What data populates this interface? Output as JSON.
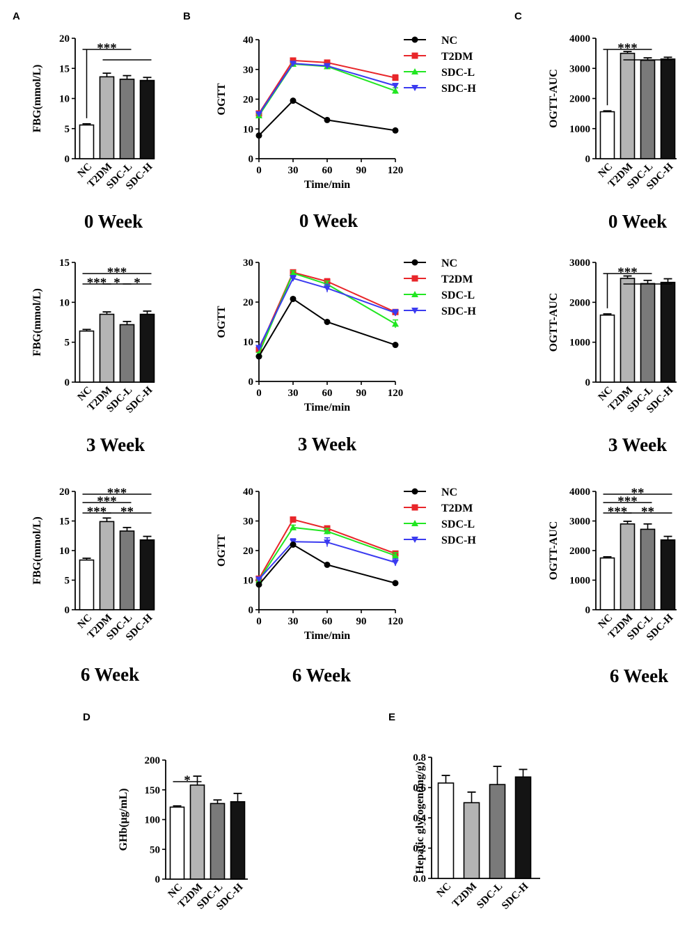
{
  "colors": {
    "NC": "#000000",
    "T2DM": "#e8262a",
    "SDC-L": "#22e622",
    "SDC-H": "#3b3bf0",
    "bar_fills": [
      "#ffffff",
      "#b4b4b4",
      "#7a7a7a",
      "#141414"
    ]
  },
  "panel_letters": {
    "A": "A",
    "B": "B",
    "C": "C",
    "D": "D",
    "E": "E"
  },
  "chart_data": [
    {
      "id": "A0",
      "type": "bar",
      "panel": "A",
      "title": "0 Week",
      "ylabel": "FBG(mmol/L)",
      "categories": [
        "NC",
        "T2DM",
        "SDC-L",
        "SDC-H"
      ],
      "values": [
        5.6,
        13.6,
        13.2,
        13.0
      ],
      "errors": [
        0.2,
        0.6,
        0.6,
        0.5
      ],
      "ylim": [
        0,
        20
      ],
      "yticks": [
        "0",
        "5",
        "10",
        "15",
        "20"
      ],
      "annotations": [
        {
          "text": "***",
          "from": 0,
          "to": 2,
          "level": 2,
          "drop": [
            0
          ]
        },
        {
          "text": "",
          "from": 1,
          "to": 3,
          "level": 1,
          "drop": []
        }
      ]
    },
    {
      "id": "A3",
      "type": "bar",
      "panel": "A",
      "title": "3 Week",
      "ylabel": "FBG(mmol/L)",
      "categories": [
        "NC",
        "T2DM",
        "SDC-L",
        "SDC-H"
      ],
      "values": [
        6.4,
        8.5,
        7.2,
        8.5
      ],
      "errors": [
        0.2,
        0.3,
        0.4,
        0.4
      ],
      "ylim": [
        0,
        15
      ],
      "yticks": [
        "0",
        "5",
        "10",
        "15"
      ],
      "annotations": [
        {
          "text": "***",
          "from": 0,
          "to": 3,
          "level": 2,
          "drop": []
        },
        {
          "text": "***",
          "from": 0,
          "to": 1,
          "level": 1,
          "drop": []
        },
        {
          "text": "*",
          "from": 1,
          "to": 2,
          "level": 1,
          "drop": []
        },
        {
          "text": "*",
          "from": 2,
          "to": 3,
          "level": 1,
          "drop": []
        }
      ]
    },
    {
      "id": "A6",
      "type": "bar",
      "panel": "A",
      "title": "6 Week",
      "ylabel": "FBG(mmol/L)",
      "categories": [
        "NC",
        "T2DM",
        "SDC-L",
        "SDC-H"
      ],
      "values": [
        8.4,
        14.9,
        13.3,
        11.8
      ],
      "errors": [
        0.3,
        0.6,
        0.6,
        0.6
      ],
      "ylim": [
        0,
        20
      ],
      "yticks": [
        "0",
        "5",
        "10",
        "15",
        "20"
      ],
      "annotations": [
        {
          "text": "***",
          "from": 0,
          "to": 3,
          "level": 3,
          "drop": []
        },
        {
          "text": "***",
          "from": 0,
          "to": 2,
          "level": 2,
          "drop": []
        },
        {
          "text": "***",
          "from": 0,
          "to": 1,
          "level": 1,
          "drop": []
        },
        {
          "text": "**",
          "from": 1,
          "to": 3,
          "level": 1,
          "drop": []
        }
      ]
    },
    {
      "id": "B0",
      "type": "line",
      "panel": "B",
      "title": "0 Week",
      "ylabel": "OGTT",
      "xlabel": "Time/min",
      "x": [
        0,
        30,
        60,
        120
      ],
      "xticks": [
        "0",
        "30",
        "60",
        "90",
        "120"
      ],
      "ylim": [
        0,
        40
      ],
      "yticks": [
        "0",
        "10",
        "20",
        "30",
        "40"
      ],
      "series": [
        {
          "name": "NC",
          "values": [
            7.8,
            19.5,
            13.0,
            9.5
          ],
          "errors": [
            0.2,
            0.3,
            0.3,
            0.2
          ]
        },
        {
          "name": "T2DM",
          "values": [
            15.2,
            33.0,
            32.3,
            27.2
          ],
          "errors": [
            0.4,
            0.5,
            0.5,
            1.0
          ]
        },
        {
          "name": "SDC-L",
          "values": [
            14.5,
            31.8,
            31.0,
            22.8
          ],
          "errors": [
            0.4,
            0.5,
            0.5,
            1.0
          ]
        },
        {
          "name": "SDC-H",
          "values": [
            15.0,
            32.0,
            31.2,
            24.5
          ],
          "errors": [
            0.4,
            0.5,
            0.5,
            0.8
          ]
        }
      ]
    },
    {
      "id": "B3",
      "type": "line",
      "panel": "B",
      "title": "3 Week",
      "ylabel": "OGTT",
      "xlabel": "Time/min",
      "x": [
        0,
        30,
        60,
        120
      ],
      "xticks": [
        "0",
        "30",
        "60",
        "90",
        "120"
      ],
      "ylim": [
        0,
        30
      ],
      "yticks": [
        "0",
        "10",
        "20",
        "30"
      ],
      "series": [
        {
          "name": "NC",
          "values": [
            6.3,
            20.8,
            15.0,
            9.2
          ],
          "errors": [
            0.2,
            0.3,
            0.3,
            0.2
          ]
        },
        {
          "name": "T2DM",
          "values": [
            8.0,
            27.5,
            25.2,
            17.5
          ],
          "errors": [
            0.3,
            0.6,
            0.7,
            0.6
          ]
        },
        {
          "name": "SDC-L",
          "values": [
            7.0,
            27.3,
            24.5,
            14.5
          ],
          "errors": [
            0.3,
            0.6,
            0.8,
            1.0
          ]
        },
        {
          "name": "SDC-H",
          "values": [
            8.5,
            26.0,
            23.5,
            17.3
          ],
          "errors": [
            0.3,
            0.7,
            1.0,
            0.8
          ]
        }
      ]
    },
    {
      "id": "B6",
      "type": "line",
      "panel": "B",
      "title": "6 Week",
      "ylabel": "OGTT",
      "xlabel": "Time/min",
      "x": [
        0,
        30,
        60,
        120
      ],
      "xticks": [
        "0",
        "30",
        "60",
        "90",
        "120"
      ],
      "ylim": [
        0,
        40
      ],
      "yticks": [
        "0",
        "10",
        "20",
        "30",
        "40"
      ],
      "series": [
        {
          "name": "NC",
          "values": [
            8.5,
            22.0,
            15.2,
            9.0
          ],
          "errors": [
            0.2,
            0.4,
            0.3,
            0.2
          ]
        },
        {
          "name": "T2DM",
          "values": [
            10.5,
            30.5,
            27.5,
            19.0
          ],
          "errors": [
            0.4,
            0.6,
            0.8,
            0.8
          ]
        },
        {
          "name": "SDC-L",
          "values": [
            10.0,
            27.8,
            26.5,
            18.3
          ],
          "errors": [
            0.4,
            0.8,
            1.0,
            1.0
          ]
        },
        {
          "name": "SDC-H",
          "values": [
            10.3,
            23.0,
            22.8,
            16.0
          ],
          "errors": [
            0.4,
            1.0,
            1.5,
            1.2
          ]
        }
      ]
    },
    {
      "id": "C0",
      "type": "bar",
      "panel": "C",
      "title": "0 Week",
      "ylabel": "OGTT-AUC",
      "categories": [
        "NC",
        "T2DM",
        "SDC-L",
        "SDC-H"
      ],
      "values": [
        1560,
        3500,
        3270,
        3310
      ],
      "errors": [
        30,
        60,
        80,
        60
      ],
      "ylim": [
        0,
        4000
      ],
      "yticks": [
        "0",
        "1000",
        "2000",
        "3000",
        "4000"
      ],
      "annotations": [
        {
          "text": "***",
          "from": 0,
          "to": 2,
          "level": 2,
          "drop": [
            0
          ]
        },
        {
          "text": "",
          "from": 1,
          "to": 3,
          "level": 1,
          "drop": []
        }
      ]
    },
    {
      "id": "C3",
      "type": "bar",
      "panel": "C",
      "title": "3 Week",
      "ylabel": "OGTT-AUC",
      "categories": [
        "NC",
        "T2DM",
        "SDC-L",
        "SDC-H"
      ],
      "values": [
        1680,
        2600,
        2470,
        2500
      ],
      "errors": [
        30,
        60,
        80,
        90
      ],
      "ylim": [
        0,
        3000
      ],
      "yticks": [
        "0",
        "1000",
        "2000",
        "3000"
      ],
      "annotations": [
        {
          "text": "***",
          "from": 0,
          "to": 2,
          "level": 2,
          "drop": [
            0
          ]
        },
        {
          "text": "",
          "from": 1,
          "to": 3,
          "level": 1,
          "drop": []
        }
      ]
    },
    {
      "id": "C6",
      "type": "bar",
      "panel": "C",
      "title": "6 Week",
      "ylabel": "OGTT-AUC",
      "categories": [
        "NC",
        "T2DM",
        "SDC-L",
        "SDC-H"
      ],
      "values": [
        1750,
        2900,
        2720,
        2360
      ],
      "errors": [
        40,
        90,
        180,
        120
      ],
      "ylim": [
        0,
        4000
      ],
      "yticks": [
        "0",
        "1000",
        "2000",
        "3000",
        "4000"
      ],
      "annotations": [
        {
          "text": "**",
          "from": 0,
          "to": 3,
          "level": 3,
          "drop": []
        },
        {
          "text": "***",
          "from": 0,
          "to": 2,
          "level": 2,
          "drop": []
        },
        {
          "text": "***",
          "from": 0,
          "to": 1,
          "level": 1,
          "drop": []
        },
        {
          "text": "**",
          "from": 1,
          "to": 3,
          "level": 1,
          "drop": []
        }
      ]
    },
    {
      "id": "D",
      "type": "bar",
      "panel": "D",
      "title": "",
      "ylabel": "GHb(μg/mL)",
      "categories": [
        "NC",
        "T2DM",
        "SDC-L",
        "SDC-H"
      ],
      "values": [
        121,
        158,
        127,
        130
      ],
      "errors": [
        2,
        15,
        6,
        14
      ],
      "ylim": [
        0,
        200
      ],
      "yticks": [
        "0",
        "50",
        "100",
        "150",
        "200"
      ],
      "annotations": [
        {
          "text": "*",
          "from": 0,
          "to": 1,
          "level": 1,
          "drop": []
        }
      ]
    },
    {
      "id": "E",
      "type": "bar",
      "panel": "E",
      "title": "",
      "ylabel": "Hepatic glycogen(mg/g)",
      "categories": [
        "NC",
        "T2DM",
        "SDC-L",
        "SDC-H"
      ],
      "values": [
        0.63,
        0.5,
        0.62,
        0.67
      ],
      "errors": [
        0.05,
        0.07,
        0.12,
        0.05
      ],
      "ylim": [
        0,
        0.8
      ],
      "yticks": [
        "0.0",
        "0.2",
        "0.4",
        "0.6",
        "0.8"
      ],
      "annotations": []
    }
  ]
}
